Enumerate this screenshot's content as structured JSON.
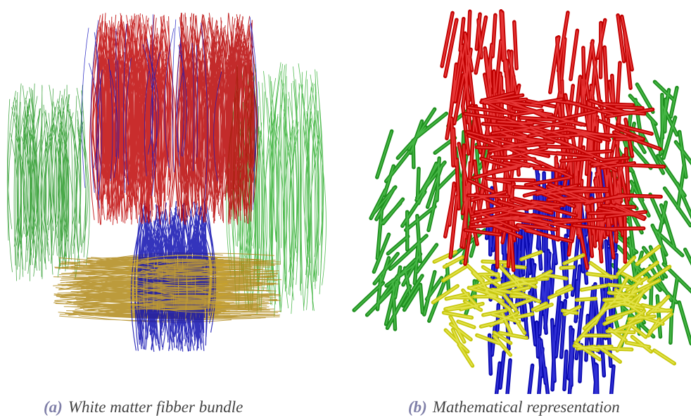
{
  "figure": {
    "subfigures": [
      {
        "label": "(a)",
        "caption": "White matter fibber bundle"
      },
      {
        "label": "(b)",
        "caption": "Mathematical representation"
      }
    ]
  }
}
